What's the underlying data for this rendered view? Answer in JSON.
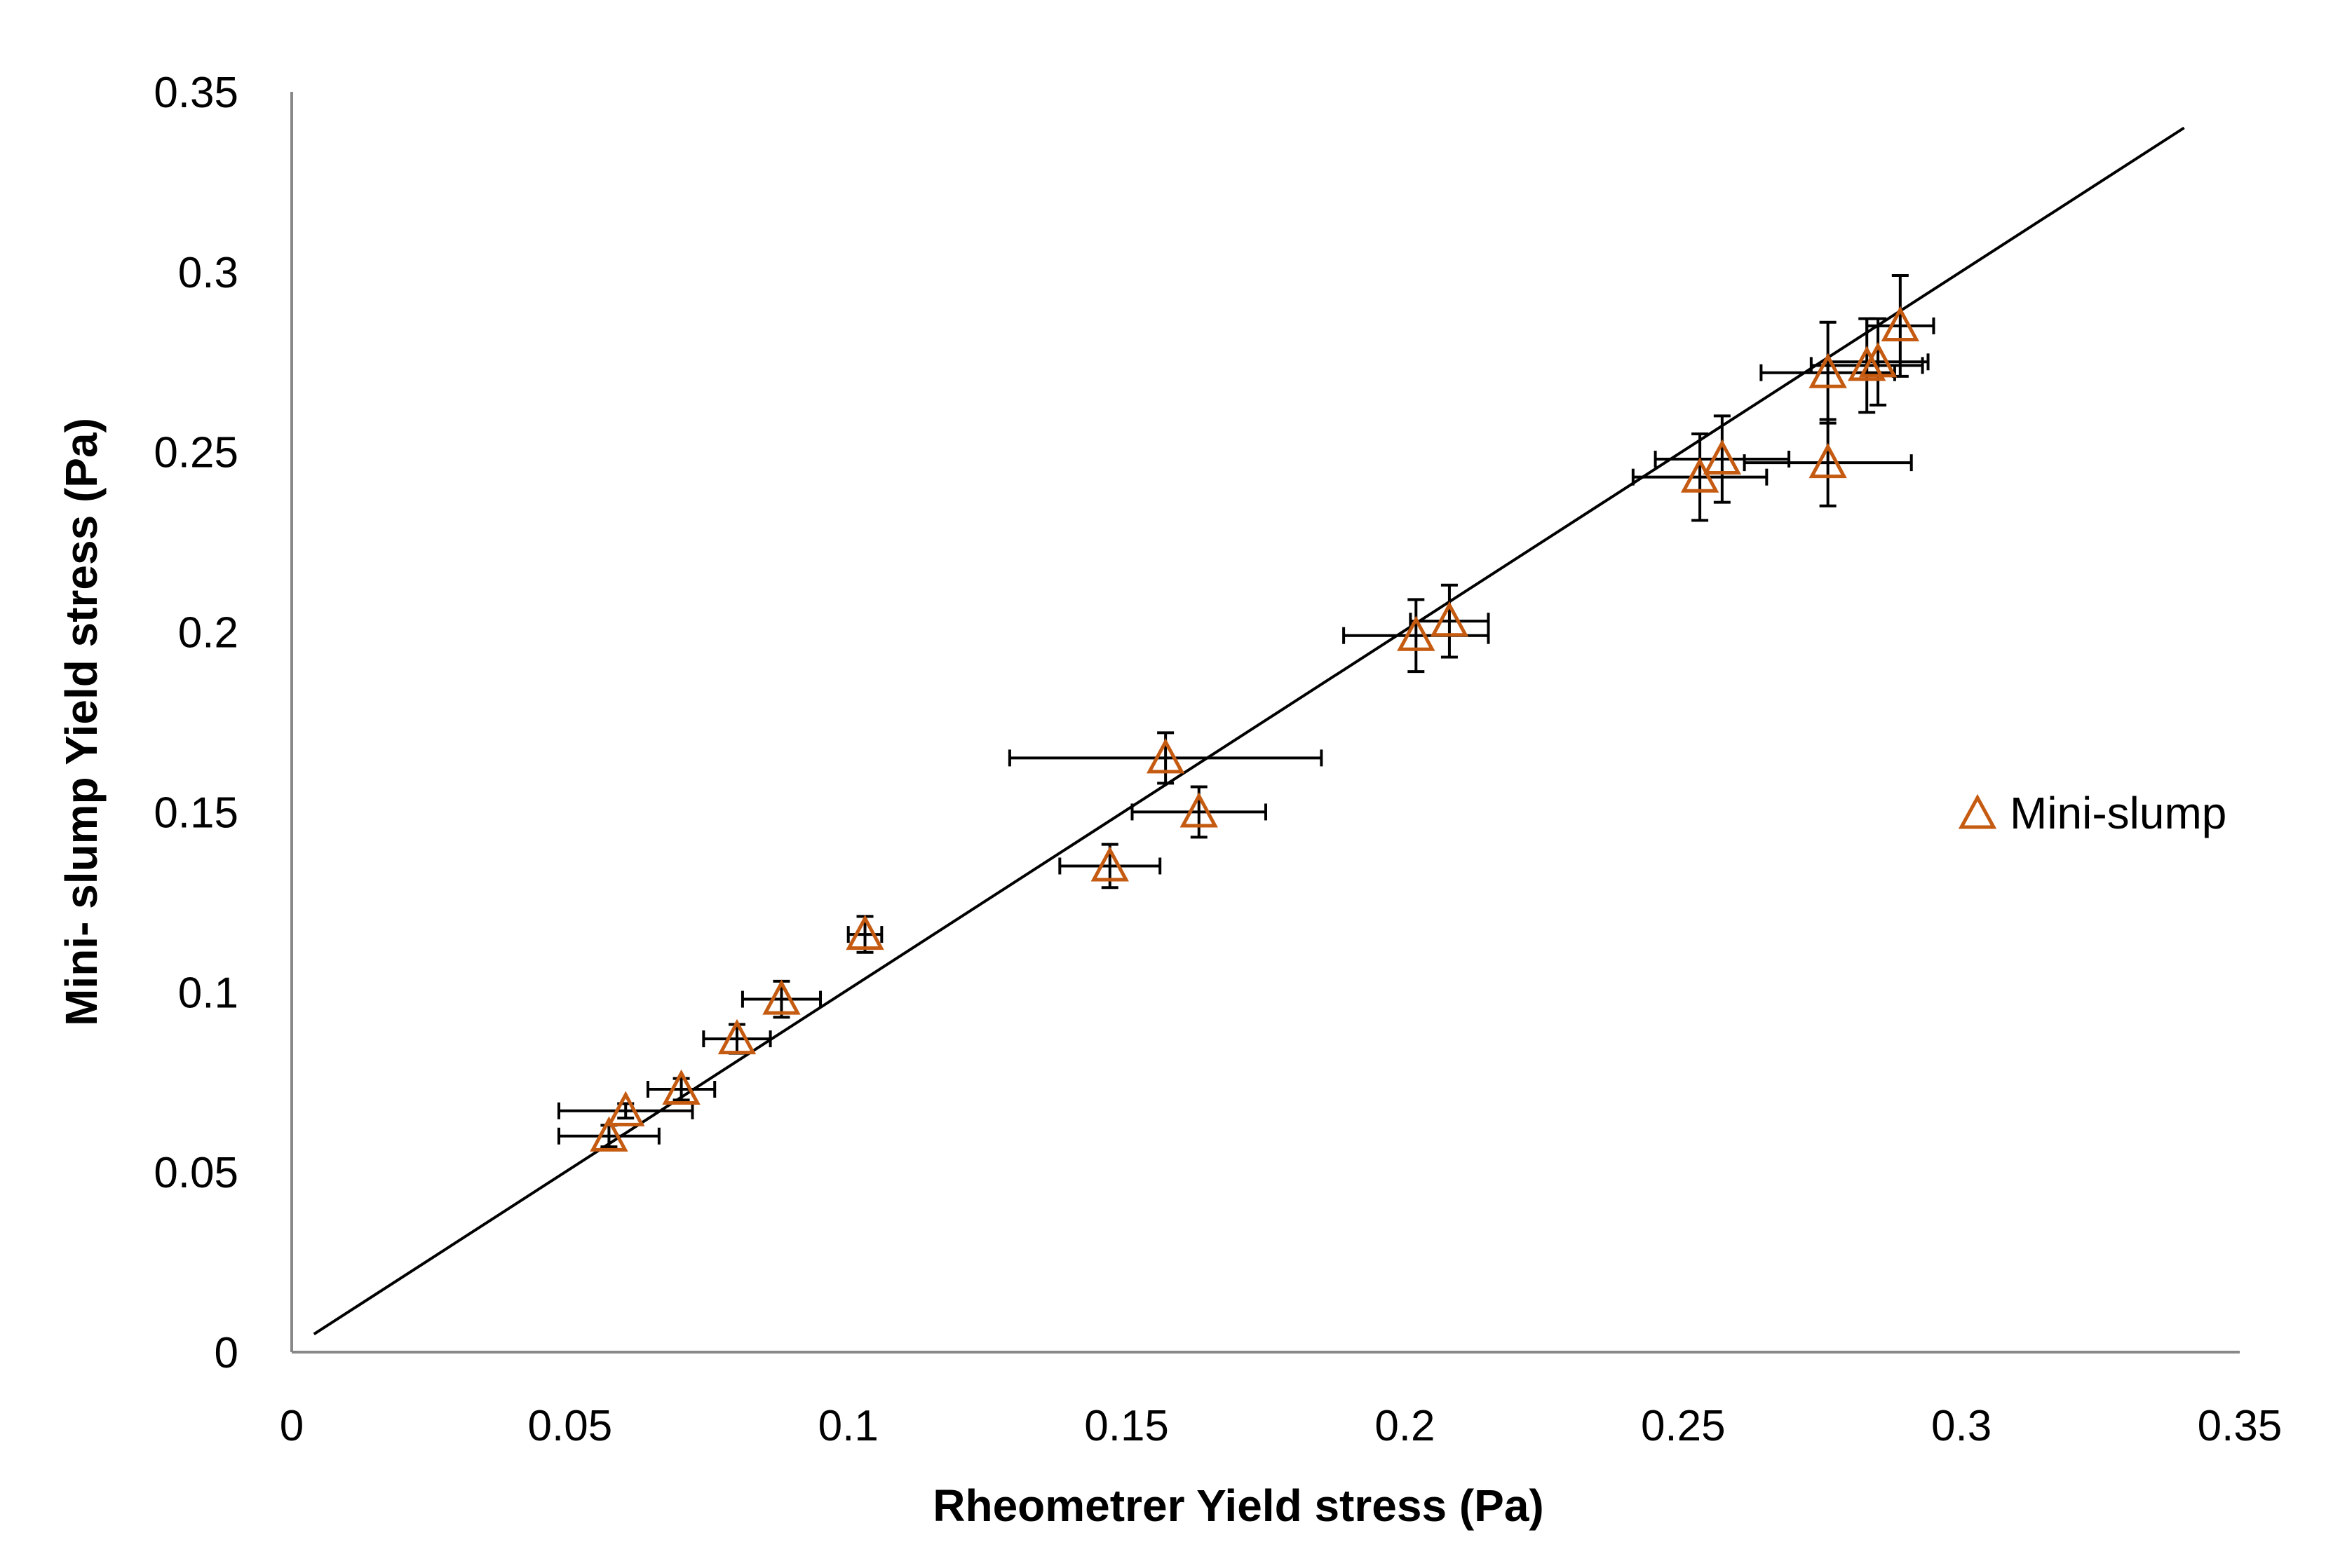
{
  "chart_data": {
    "type": "scatter",
    "title": "",
    "xlabel": "Rheometrer Yield stress (Pa)",
    "ylabel": "Mini- slump  Yield stress (Pa)",
    "xlim": [
      0,
      0.35
    ],
    "ylim": [
      0,
      0.35
    ],
    "xticks": [
      "0",
      "0.05",
      "0.1",
      "0.15",
      "0.2",
      "0.25",
      "0.3",
      "0.35"
    ],
    "yticks": [
      "0",
      "0.05",
      "0.1",
      "0.15",
      "0.2",
      "0.25",
      "0.3",
      "0.35"
    ],
    "grid": false,
    "legend_position": "right",
    "colors": {
      "marker": "#c55a11",
      "line": "#000000",
      "errorbar": "#000000",
      "axis": "#888888"
    },
    "series": [
      {
        "name": "Mini-slump",
        "marker": "open-triangle",
        "points": [
          {
            "x": 0.057,
            "y": 0.06,
            "xerr": 0.009,
            "yerr": 0.003
          },
          {
            "x": 0.06,
            "y": 0.067,
            "xerr": 0.012,
            "yerr": 0.002
          },
          {
            "x": 0.07,
            "y": 0.073,
            "xerr": 0.006,
            "yerr": 0.003
          },
          {
            "x": 0.08,
            "y": 0.087,
            "xerr": 0.006,
            "yerr": 0.004
          },
          {
            "x": 0.088,
            "y": 0.098,
            "xerr": 0.007,
            "yerr": 0.005
          },
          {
            "x": 0.103,
            "y": 0.116,
            "xerr": 0.003,
            "yerr": 0.005
          },
          {
            "x": 0.147,
            "y": 0.135,
            "xerr": 0.009,
            "yerr": 0.006
          },
          {
            "x": 0.157,
            "y": 0.165,
            "xerr": 0.028,
            "yerr": 0.007
          },
          {
            "x": 0.163,
            "y": 0.15,
            "xerr": 0.012,
            "yerr": 0.007
          },
          {
            "x": 0.202,
            "y": 0.199,
            "xerr": 0.013,
            "yerr": 0.01
          },
          {
            "x": 0.208,
            "y": 0.203,
            "xerr": 0.007,
            "yerr": 0.01
          },
          {
            "x": 0.253,
            "y": 0.243,
            "xerr": 0.012,
            "yerr": 0.012
          },
          {
            "x": 0.257,
            "y": 0.248,
            "xerr": 0.012,
            "yerr": 0.012
          },
          {
            "x": 0.276,
            "y": 0.247,
            "xerr": 0.015,
            "yerr": 0.012
          },
          {
            "x": 0.276,
            "y": 0.272,
            "xerr": 0.012,
            "yerr": 0.014
          },
          {
            "x": 0.283,
            "y": 0.274,
            "xerr": 0.01,
            "yerr": 0.013
          },
          {
            "x": 0.285,
            "y": 0.275,
            "xerr": 0.009,
            "yerr": 0.012
          },
          {
            "x": 0.289,
            "y": 0.285,
            "xerr": 0.006,
            "yerr": 0.014
          }
        ]
      }
    ],
    "trendline": {
      "x": [
        0.004,
        0.34
      ],
      "y": [
        0.005,
        0.34
      ]
    }
  }
}
